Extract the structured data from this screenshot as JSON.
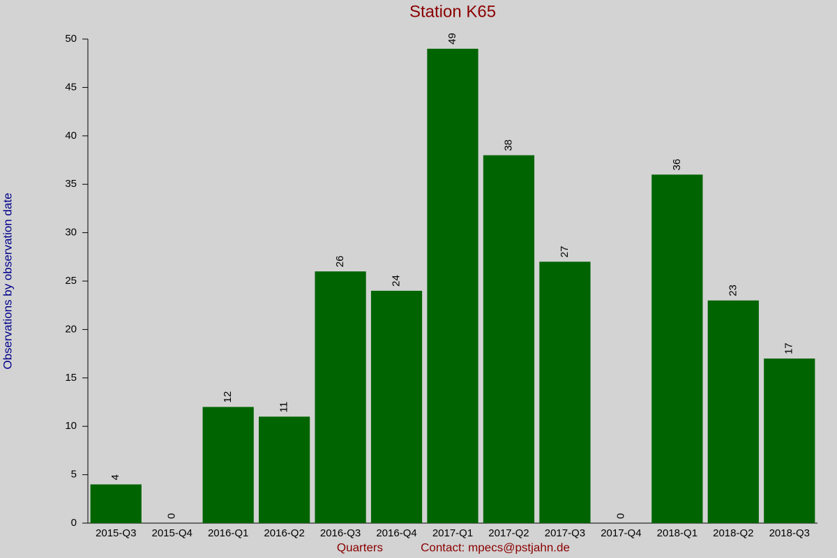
{
  "chart_data": {
    "type": "bar",
    "title": "Station K65",
    "y_label": "Observations by observation date",
    "x_label": "Quarters",
    "footer": "Contact: mpecs@pstjahn.de",
    "categories": [
      "2015-Q3",
      "2015-Q4",
      "2016-Q1",
      "2016-Q2",
      "2016-Q3",
      "2016-Q4",
      "2017-Q1",
      "2017-Q2",
      "2017-Q3",
      "2017-Q4",
      "2018-Q1",
      "2018-Q2",
      "2018-Q3"
    ],
    "values": [
      4,
      0,
      12,
      11,
      26,
      24,
      49,
      38,
      27,
      0,
      36,
      23,
      17
    ],
    "color": "#006400",
    "ylim": [
      0,
      50
    ],
    "yticks": [
      0,
      5,
      10,
      15,
      20,
      25,
      30,
      35,
      40,
      45,
      50
    ],
    "grid": false
  }
}
